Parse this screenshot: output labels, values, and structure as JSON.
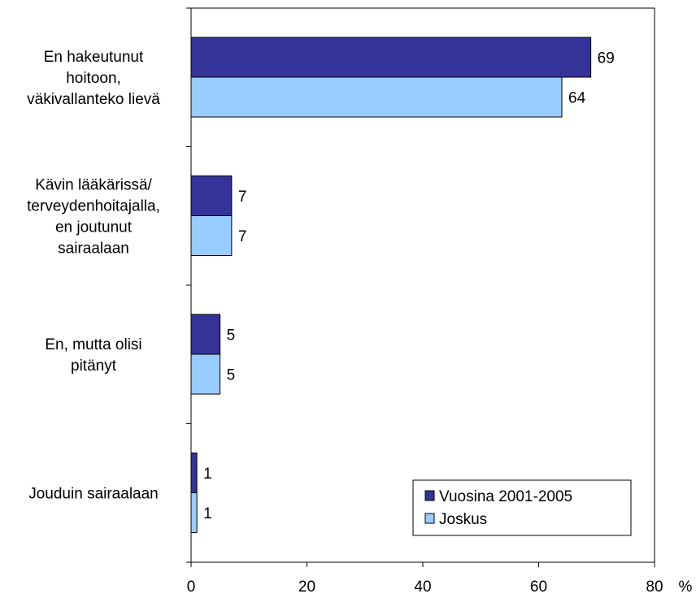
{
  "chart_data": {
    "type": "bar",
    "orientation": "horizontal",
    "categories": [
      [
        "En hakeutunut",
        "hoitoon,",
        "väkivallanteko lievä"
      ],
      [
        "Kävin lääkärissä/",
        "terveydenhoitajalla,",
        "en joutunut",
        "sairaalaan"
      ],
      [
        "En, mutta olisi",
        "pitänyt"
      ],
      [
        "Jouduin sairaalaan"
      ]
    ],
    "series": [
      {
        "name": "Vuosina 2001-2005",
        "values": [
          69,
          7,
          5,
          1
        ],
        "color": "#333399"
      },
      {
        "name": "Joskus",
        "values": [
          64,
          7,
          5,
          1
        ],
        "color": "#99CCFF"
      }
    ],
    "xlim": [
      0,
      80
    ],
    "xticks": [
      "0",
      "20",
      "40",
      "60",
      "80"
    ],
    "unit_label": "%",
    "legend_placement": "bottom-right",
    "grid": false
  }
}
